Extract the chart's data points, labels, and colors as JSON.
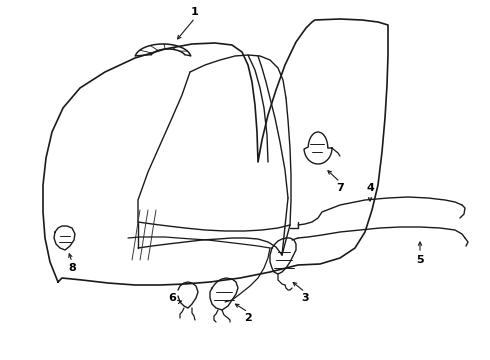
{
  "background_color": "#ffffff",
  "line_color": "#1a1a1a",
  "label_color": "#000000",
  "fig_width": 4.9,
  "fig_height": 3.6,
  "dpi": 100
}
